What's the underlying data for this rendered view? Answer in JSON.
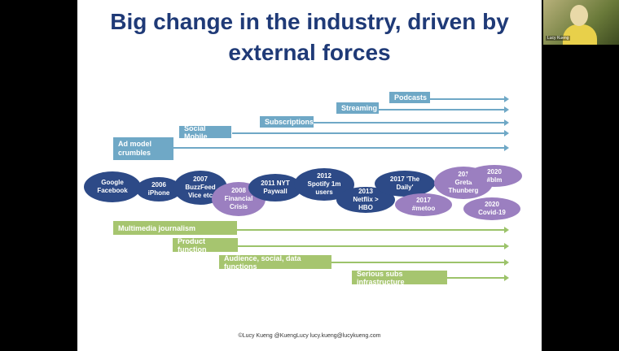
{
  "slide": {
    "title": "Big change in the industry, driven by external forces",
    "footer": "©Lucy Kueng  @KuengLucy  lucy.kueng@lucykueng.com"
  },
  "top_trends": [
    {
      "label": "Podcasts"
    },
    {
      "label": "Streaming"
    },
    {
      "label": "Subscriptions"
    },
    {
      "label": "Social Mobile"
    },
    {
      "label": "Ad model crumbles"
    }
  ],
  "events": [
    {
      "text": "Google\nFacebook",
      "color": "dark"
    },
    {
      "text": "2006\niPhone",
      "color": "dark"
    },
    {
      "text": "2007\nBuzzFeed\nVice etc",
      "color": "dark"
    },
    {
      "text": "2008\nFinancial\nCrisis",
      "color": "purple"
    },
    {
      "text": "2011 NYT\nPaywall",
      "color": "dark"
    },
    {
      "text": "2012\nSpotify 1m\nusers",
      "color": "dark"
    },
    {
      "text": "2013\nNetflix >\nHBO",
      "color": "dark"
    },
    {
      "text": "2017 'The\nDaily'",
      "color": "dark"
    },
    {
      "text": "2017\n#metoo",
      "color": "purple"
    },
    {
      "text": "201\nGreta\nThunberg",
      "color": "purple"
    },
    {
      "text": "2020\n#blm",
      "color": "purple"
    },
    {
      "text": "2020\nCovid-19",
      "color": "purple"
    }
  ],
  "bottom_trends": [
    {
      "label": "Multimedia journalism"
    },
    {
      "label": "Product function"
    },
    {
      "label": "Audience, social, data functions"
    },
    {
      "label": "Serious subs infrastructure"
    }
  ],
  "video": {
    "name": "Lucy Kueng"
  },
  "colors": {
    "title": "#1f3a77",
    "blue": "#6fa8c6",
    "green": "#a6c56f",
    "dark_event": "#2d4a87",
    "purple_event": "#9b7fc0"
  }
}
